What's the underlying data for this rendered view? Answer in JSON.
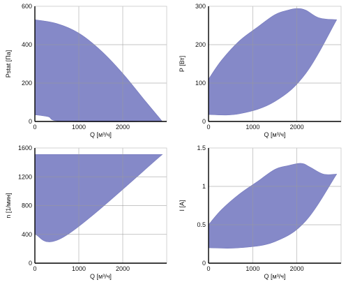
{
  "chart_data": [
    {
      "type": "area",
      "xlabel": "Q [м³/ч]",
      "ylabel": "Pstat [Па]",
      "xlim": [
        0,
        3000
      ],
      "ylim": [
        0,
        600
      ],
      "xticks": [
        0,
        1000,
        2000
      ],
      "yticks": [
        0,
        200,
        400,
        600
      ],
      "grid": true,
      "fill_color": "#7b7fc4",
      "upper": {
        "x": [
          0,
          500,
          1000,
          1500,
          2000,
          2500,
          2900
        ],
        "y": [
          530,
          510,
          460,
          370,
          250,
          110,
          0
        ]
      },
      "lower": {
        "x": [
          0,
          300,
          700,
          2900
        ],
        "y": [
          35,
          25,
          0,
          0
        ]
      }
    },
    {
      "type": "area",
      "xlabel": "Q [м³/ч]",
      "ylabel": "P [Вт]",
      "xlim": [
        0,
        3000
      ],
      "ylim": [
        0,
        300
      ],
      "xticks": [
        0,
        1000,
        2000
      ],
      "yticks": [
        0,
        100,
        200,
        300
      ],
      "grid": true,
      "fill_color": "#7b7fc4",
      "upper": {
        "x": [
          0,
          300,
          700,
          1100,
          1500,
          1800,
          2000,
          2200,
          2500,
          2900
        ],
        "y": [
          110,
          160,
          210,
          245,
          278,
          290,
          294,
          290,
          270,
          265
        ]
      },
      "lower": {
        "x": [
          0,
          700,
          1500,
          2200,
          2900
        ],
        "y": [
          18,
          20,
          52,
          125,
          265
        ]
      }
    },
    {
      "type": "area",
      "xlabel": "Q [м³/ч]",
      "ylabel": "n [1/мин]",
      "xlim": [
        0,
        3000
      ],
      "ylim": [
        0,
        1600
      ],
      "xticks": [
        0,
        1000,
        2000
      ],
      "yticks": [
        0,
        400,
        800,
        1200,
        1600
      ],
      "grid": true,
      "fill_color": "#7b7fc4",
      "upper": {
        "x": [
          0,
          2900
        ],
        "y": [
          1510,
          1510
        ]
      },
      "lower": {
        "x": [
          0,
          700,
          2900
        ],
        "y": [
          400,
          380,
          1510
        ]
      }
    },
    {
      "type": "area",
      "xlabel": "Q [м³/ч]",
      "ylabel": "I [A]",
      "xlim": [
        0,
        3000
      ],
      "ylim": [
        0,
        1.5
      ],
      "xticks": [
        0,
        1000,
        2000
      ],
      "yticks": [
        0,
        0.5,
        1,
        1.5
      ],
      "grid": true,
      "fill_color": "#7b7fc4",
      "upper": {
        "x": [
          0,
          300,
          700,
          1100,
          1500,
          1800,
          2100,
          2300,
          2600,
          2900
        ],
        "y": [
          0.5,
          0.7,
          0.9,
          1.06,
          1.22,
          1.27,
          1.3,
          1.25,
          1.16,
          1.16
        ]
      },
      "lower": {
        "x": [
          0,
          700,
          1500,
          2200,
          2900
        ],
        "y": [
          0.2,
          0.2,
          0.28,
          0.55,
          1.16
        ]
      }
    }
  ]
}
